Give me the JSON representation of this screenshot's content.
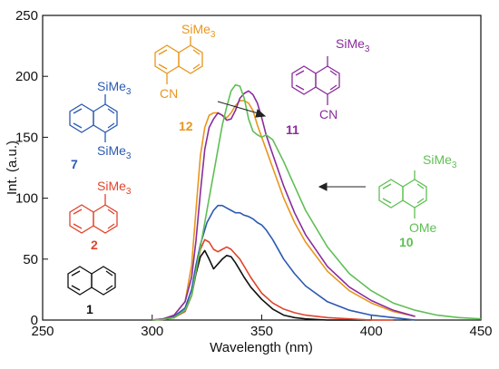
{
  "chart_data": {
    "type": "line",
    "xlabel": "Wavelength (nm)",
    "ylabel": "Int. (a.u.)",
    "xlim": [
      250,
      450
    ],
    "ylim": [
      0,
      250
    ],
    "xticks": [
      250,
      300,
      350,
      400,
      450
    ],
    "yticks": [
      0,
      50,
      100,
      150,
      200,
      250
    ],
    "grid": false,
    "series": [
      {
        "name": "1",
        "color": "#111111",
        "x": [
          300,
          305,
          310,
          315,
          318,
          320,
          322,
          324,
          326,
          328,
          330,
          332,
          334,
          336,
          338,
          340,
          342,
          345,
          350,
          355,
          360,
          365,
          370,
          380,
          390,
          400
        ],
        "y": [
          0,
          0.5,
          2,
          8,
          20,
          38,
          52,
          57,
          50,
          42,
          46,
          50,
          53,
          52,
          47,
          41,
          35,
          27,
          17,
          9,
          4,
          2,
          1,
          0,
          0,
          0
        ]
      },
      {
        "name": "2",
        "color": "#e0442c",
        "x": [
          300,
          305,
          310,
          315,
          318,
          320,
          322,
          324,
          326,
          328,
          330,
          332,
          334,
          336,
          338,
          340,
          342,
          345,
          350,
          355,
          360,
          365,
          370,
          380,
          390,
          400,
          410
        ],
        "y": [
          0,
          0.5,
          2,
          7,
          20,
          40,
          58,
          66,
          64,
          58,
          56,
          58,
          60,
          58,
          54,
          50,
          44,
          35,
          22,
          14,
          9,
          6,
          4,
          2,
          1,
          0,
          0
        ]
      },
      {
        "name": "7",
        "color": "#2b5ab0",
        "x": [
          300,
          305,
          310,
          315,
          318,
          320,
          322,
          325,
          328,
          330,
          332,
          334,
          336,
          338,
          340,
          342,
          344,
          346,
          348,
          350,
          352,
          355,
          360,
          365,
          370,
          380,
          390,
          400,
          410,
          420
        ],
        "y": [
          0,
          1,
          3,
          10,
          25,
          45,
          62,
          80,
          90,
          94,
          94,
          92,
          90,
          88,
          88,
          86,
          85,
          83,
          80,
          78,
          74,
          66,
          50,
          38,
          28,
          15,
          8,
          4,
          2,
          0
        ]
      },
      {
        "name": "12",
        "color": "#e8961c",
        "x": [
          300,
          305,
          310,
          315,
          318,
          320,
          322,
          324,
          326,
          328,
          330,
          332,
          334,
          336,
          338,
          340,
          342,
          344,
          346,
          348,
          350,
          352,
          355,
          360,
          365,
          370,
          380,
          390,
          400,
          410,
          420
        ],
        "y": [
          0,
          1,
          4,
          15,
          45,
          90,
          135,
          158,
          168,
          170,
          170,
          168,
          166,
          170,
          176,
          180,
          180,
          178,
          172,
          160,
          150,
          140,
          125,
          100,
          80,
          64,
          40,
          24,
          14,
          7,
          3
        ]
      },
      {
        "name": "11",
        "color": "#8a2c9c",
        "x": [
          300,
          305,
          310,
          315,
          318,
          320,
          322,
          324,
          326,
          328,
          330,
          332,
          334,
          336,
          338,
          340,
          342,
          344,
          346,
          348,
          350,
          352,
          355,
          360,
          365,
          370,
          380,
          390,
          400,
          410,
          420
        ],
        "y": [
          0,
          1,
          4,
          15,
          35,
          65,
          105,
          140,
          158,
          165,
          170,
          168,
          164,
          165,
          172,
          182,
          186,
          188,
          185,
          178,
          166,
          152,
          136,
          110,
          88,
          70,
          44,
          27,
          16,
          8,
          3
        ]
      },
      {
        "name": "10",
        "color": "#5fbf55",
        "x": [
          300,
          305,
          310,
          315,
          318,
          320,
          322,
          324,
          326,
          328,
          330,
          332,
          334,
          336,
          338,
          340,
          342,
          344,
          346,
          348,
          350,
          352,
          355,
          360,
          365,
          370,
          380,
          390,
          400,
          410,
          420,
          430,
          440,
          450
        ],
        "y": [
          0,
          0.5,
          2,
          8,
          20,
          40,
          60,
          80,
          100,
          120,
          140,
          160,
          175,
          188,
          193,
          192,
          182,
          165,
          155,
          152,
          150,
          152,
          148,
          130,
          110,
          90,
          60,
          38,
          24,
          14,
          8,
          4,
          2,
          1
        ]
      }
    ],
    "annotations": [
      {
        "text": "SiMe3",
        "compound": "12"
      },
      {
        "text": "CN",
        "compound": "12"
      },
      {
        "text": "SiMe3",
        "compound": "7"
      },
      {
        "text": "SiMe3",
        "compound": "7"
      },
      {
        "text": "SiMe3",
        "compound": "2"
      },
      {
        "text": "SiMe3",
        "compound": "11"
      },
      {
        "text": "CN",
        "compound": "11"
      },
      {
        "text": "SiMe3",
        "compound": "10"
      },
      {
        "text": "OMe",
        "compound": "10"
      }
    ]
  },
  "labels": {
    "c12_sub_top": "SiMe",
    "c12_sub_bottom": "CN",
    "c12_num": "12",
    "c7_sub_top": "SiMe",
    "c7_sub_bottom": "SiMe",
    "c7_num": "7",
    "c2_sub_top": "SiMe",
    "c2_num": "2",
    "c1_num": "1",
    "c11_sub_top": "SiMe",
    "c11_sub_bottom": "CN",
    "c11_num": "11",
    "c10_sub_top": "SiMe",
    "c10_sub_bottom": "OMe",
    "c10_num": "10",
    "sub3": "3"
  }
}
